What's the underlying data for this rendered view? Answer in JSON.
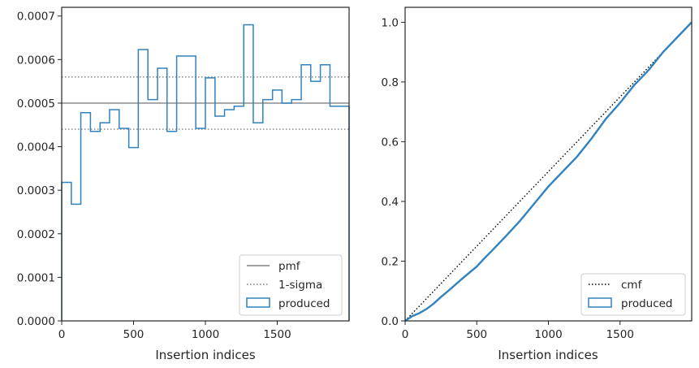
{
  "chart_data": [
    {
      "type": "histogram",
      "xlabel": "Insertion indices",
      "ylabel": "",
      "xlim": [
        0,
        2000
      ],
      "ylim": [
        0,
        0.00072
      ],
      "xticks": [
        "0",
        "500",
        "1000",
        "1500"
      ],
      "yticks": [
        "0.0000",
        "0.0001",
        "0.0002",
        "0.0003",
        "0.0004",
        "0.0005",
        "0.0006",
        "0.0007"
      ],
      "bin_edges": [
        0,
        67,
        133,
        200,
        267,
        333,
        400,
        467,
        533,
        600,
        667,
        733,
        800,
        867,
        933,
        1000,
        1067,
        1133,
        1200,
        1267,
        1333,
        1400,
        1467,
        1533,
        1600,
        1667,
        1733,
        1800,
        1867,
        1933,
        2000
      ],
      "values": [
        0.000318,
        0.000268,
        0.000478,
        0.000435,
        0.000455,
        0.000485,
        0.000442,
        0.000398,
        0.000623,
        0.000508,
        0.00058,
        0.000435,
        0.000608,
        0.000608,
        0.000442,
        0.000558,
        0.00047,
        0.000485,
        0.000493,
        0.00068,
        0.000455,
        0.000508,
        0.00053,
        0.0005,
        0.000508,
        0.000588,
        0.00055,
        0.000588,
        0.000493,
        0.000493
      ],
      "pmf": 0.0005,
      "sigma_band": [
        0.00044,
        0.00056
      ],
      "legend": {
        "position": "lower-right",
        "entries": [
          "pmf",
          "1-sigma",
          "produced"
        ]
      },
      "colors": {
        "produced": "#3182bd",
        "pmf": "#808080",
        "sigma": "#808080"
      }
    },
    {
      "type": "line",
      "xlabel": "Insertion indices",
      "ylabel": "",
      "xlim": [
        0,
        2000
      ],
      "ylim": [
        0,
        1.05
      ],
      "xticks": [
        "0",
        "500",
        "1000",
        "1500"
      ],
      "yticks": [
        "0.0",
        "0.2",
        "0.4",
        "0.6",
        "0.8",
        "1.0"
      ],
      "cmf": {
        "x": [
          0,
          2000
        ],
        "y": [
          0,
          1.0
        ]
      },
      "produced": {
        "x": [
          0,
          50,
          100,
          150,
          200,
          250,
          300,
          400,
          500,
          550,
          600,
          700,
          800,
          900,
          1000,
          1100,
          1200,
          1300,
          1400,
          1500,
          1600,
          1700,
          1800,
          1900,
          2000
        ],
        "y": [
          0,
          0.016,
          0.026,
          0.04,
          0.058,
          0.08,
          0.1,
          0.142,
          0.182,
          0.208,
          0.232,
          0.282,
          0.334,
          0.392,
          0.45,
          0.5,
          0.55,
          0.61,
          0.676,
          0.73,
          0.79,
          0.84,
          0.9,
          0.95,
          1.0
        ]
      },
      "legend": {
        "position": "lower-right",
        "entries": [
          "cmf",
          "produced"
        ]
      },
      "colors": {
        "produced": "#3182bd",
        "cmf": "#000000"
      }
    }
  ]
}
